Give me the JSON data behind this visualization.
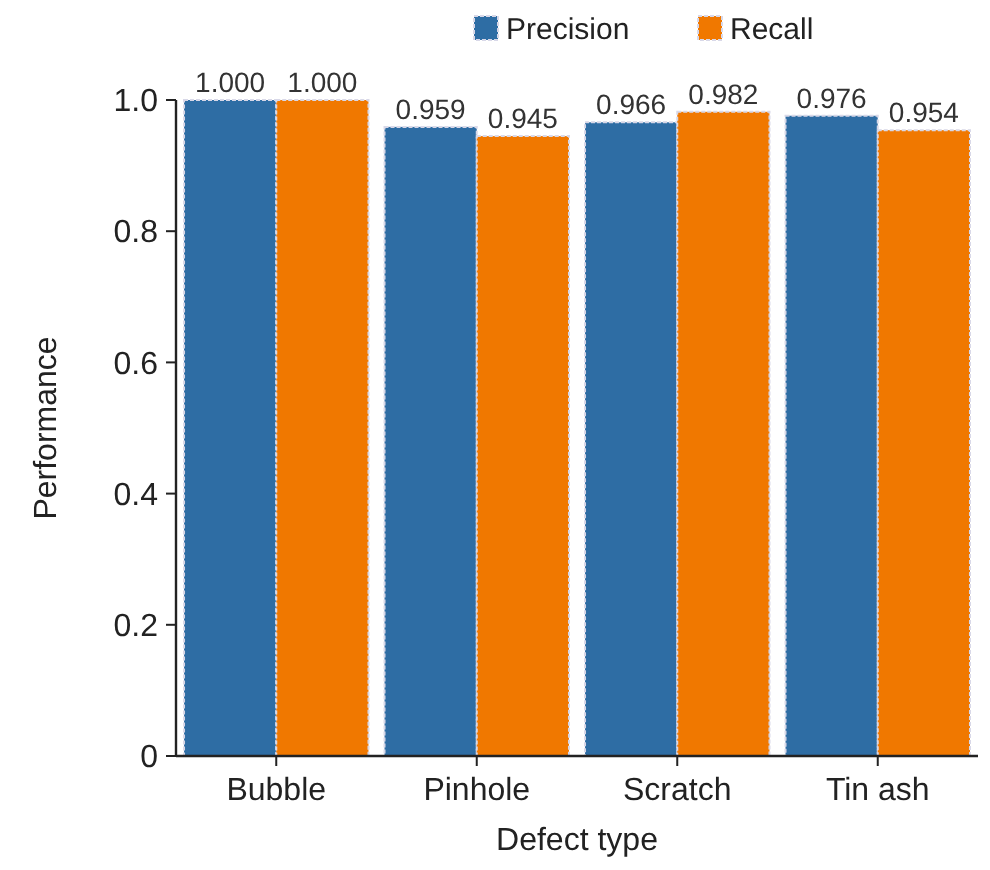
{
  "chart_data": {
    "type": "bar",
    "xlabel": "Defect type",
    "ylabel": "Performance",
    "categories": [
      "Bubble",
      "Pinhole",
      "Scratch",
      "Tin ash"
    ],
    "series": [
      {
        "name": "Precision",
        "color": "#2e6da4",
        "values": [
          1.0,
          0.959,
          0.966,
          0.976
        ],
        "value_labels": [
          "1.000",
          "0.959",
          "0.966",
          "0.976"
        ]
      },
      {
        "name": "Recall",
        "color": "#f07800",
        "values": [
          1.0,
          0.945,
          0.982,
          0.954
        ],
        "value_labels": [
          "1.000",
          "0.945",
          "0.982",
          "0.954"
        ]
      }
    ],
    "ylim": [
      0,
      1.0
    ],
    "yticks": [
      0,
      0.2,
      0.4,
      0.6,
      0.8,
      {
        "value": 1.0,
        "label": "1.0"
      }
    ],
    "grid": false,
    "legend": "top"
  }
}
